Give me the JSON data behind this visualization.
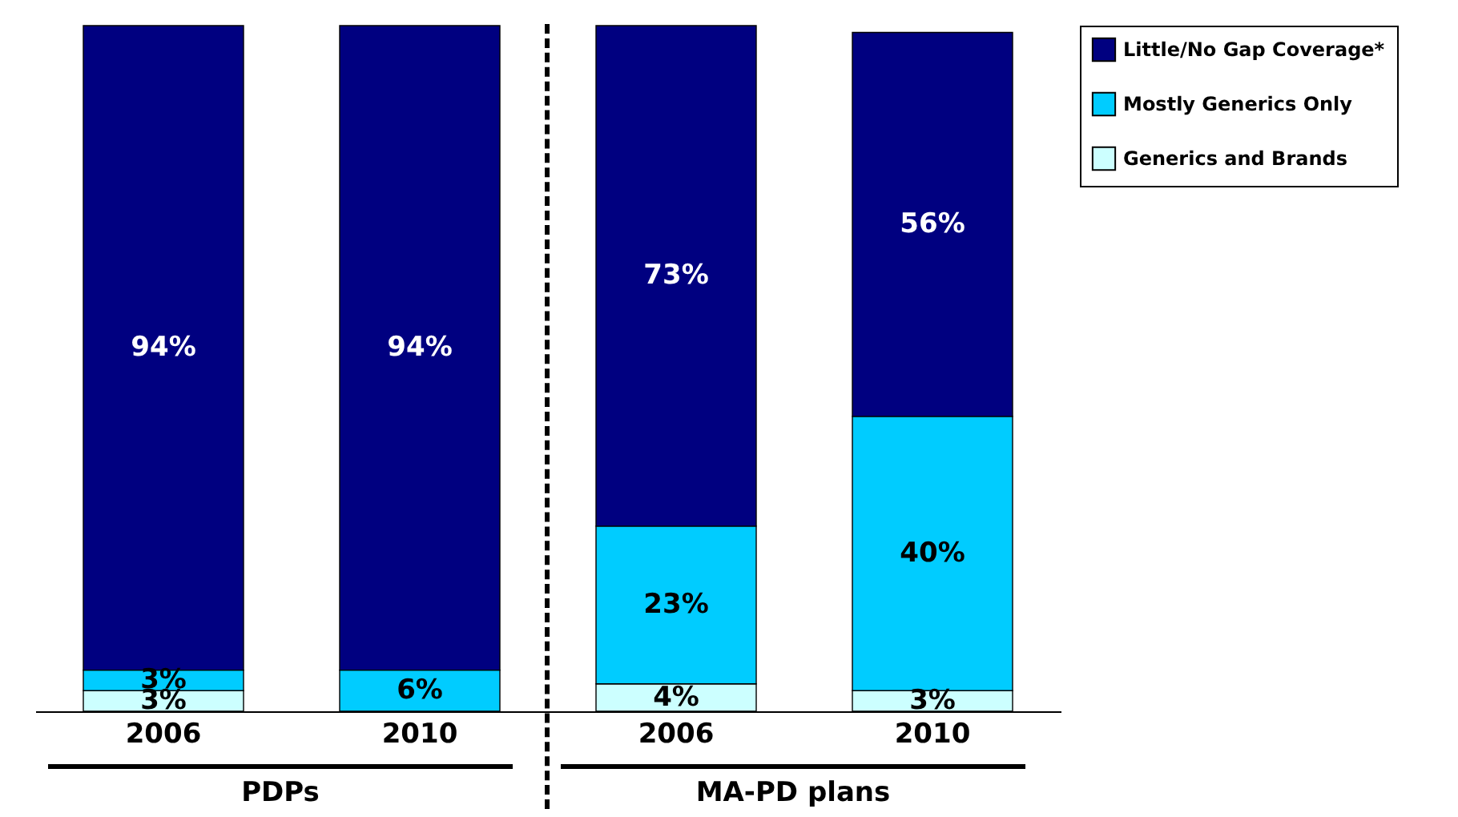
{
  "chart_data": {
    "type": "bar",
    "stacked": true,
    "legend": "right",
    "categories": [
      "2006",
      "2010",
      "2006",
      "2010"
    ],
    "series": [
      {
        "name": "Generics and Brands",
        "color": "#ccffff",
        "values": [
          3,
          null,
          4,
          3
        ],
        "value_labels": [
          "3%",
          null,
          "4%",
          "3%"
        ]
      },
      {
        "name": "Mostly Generics Only",
        "color": "#00ccff",
        "values": [
          3,
          6,
          23,
          40
        ],
        "value_labels": [
          "3%",
          "6%",
          "23%",
          "40%"
        ]
      },
      {
        "name": "Little/No Gap Coverage*",
        "color": "#000080",
        "values": [
          94,
          94,
          73,
          56
        ],
        "value_labels": [
          "94%",
          "94%",
          "73%",
          "56%"
        ]
      }
    ],
    "annotations": [
      "PDPs",
      "MA-PD plans"
    ]
  }
}
